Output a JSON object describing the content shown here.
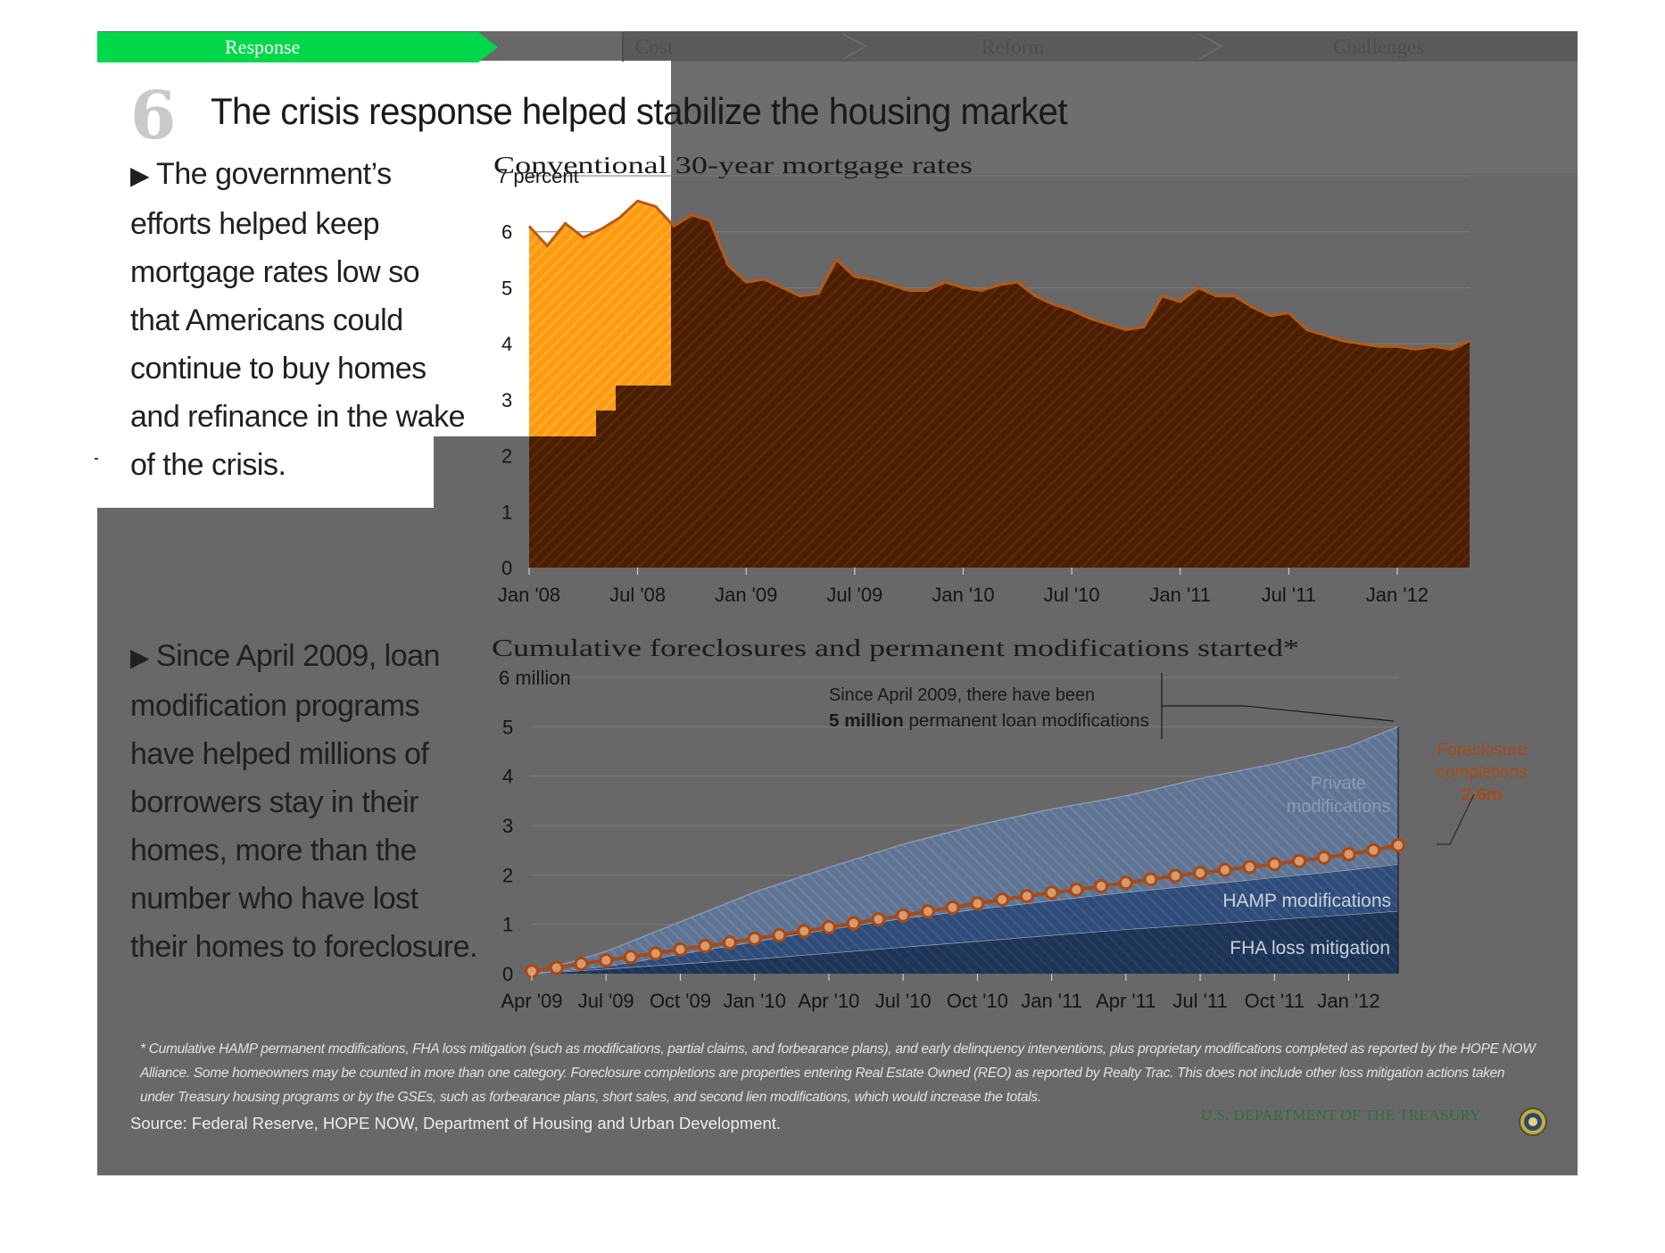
{
  "nav": {
    "active_tab": "Response",
    "tabs": [
      "Cost",
      "Reform",
      "Challenges"
    ]
  },
  "slide": {
    "number": "6",
    "title": "The crisis response helped stabilize the housing market",
    "paragraph1": "The government’s efforts helped keep mortgage rates low so that Americans could continue to buy homes and refinance in the wake of the crisis.",
    "paragraph1_lines": [
      "The government’s",
      "efforts helped keep",
      "mortgage rates low so",
      "that Americans could",
      "continue to buy homes",
      "and refinance in the wake",
      "of the crisis."
    ],
    "paragraph2": "Since April 2009, loan modification programs have helped millions of borrowers stay in their homes, more than the number who have lost their homes to foreclosure.",
    "paragraph2_lines": [
      "Since April 2009, loan",
      "modification programs",
      "have helped millions of",
      "borrowers stay in their",
      "homes, more than the",
      "number who have lost",
      "their homes to foreclosure."
    ],
    "footnote": "* Cumulative HAMP permanent modifications, FHA loss mitigation (such as modifications, partial claims, and forbearance plans), and early delinquency interventions, plus proprietary modifications completed as reported by the HOPE NOW Alliance. Some homeowners may be counted in more than one category. Foreclosure completions are properties entering Real Estate Owned (REO) as reported by Realty Trac. This does not include other loss mitigation actions taken under Treasury housing programs  or by the GSEs, such as forbearance plans, short sales, and second lien modifications, which would increase the totals.",
    "source": "Source: Federal Reserve, HOPE NOW, Department of Housing and Urban Development.",
    "department": "U.S. DEPARTMENT OF THE TREASURY"
  },
  "colors": {
    "accent_green": "#00d84a",
    "panel_gray": "#686868",
    "mortgage_fill": "#4a1e02",
    "mortgage_highlight": "#ff9a0d",
    "mortgage_line": "#b65a14",
    "foreclosure_line": "#a84a16",
    "fha_band": "#1f3857",
    "hamp_band": "#324f7c",
    "private_band": "#5f7392"
  },
  "chart_data": [
    {
      "type": "area",
      "title": "Conventional 30-year mortgage rates",
      "ylabel": "7 percent",
      "ylim": [
        0,
        7
      ],
      "yticks": [
        0,
        1,
        2,
        3,
        4,
        5,
        6,
        "7 percent"
      ],
      "xlim": [
        "2008-01",
        "2012-05"
      ],
      "xticks": [
        "Jan '08",
        "Jul '08",
        "Jan '09",
        "Jul '09",
        "Jan '10",
        "Jul '10",
        "Jan '11",
        "Jul '11",
        "Jan '12"
      ],
      "grid": true,
      "series": [
        {
          "x": [
            "2008-01",
            "2008-02",
            "2008-03",
            "2008-04",
            "2008-05",
            "2008-06",
            "2008-07",
            "2008-08",
            "2008-09",
            "2008-10",
            "2008-11",
            "2008-12",
            "2009-01",
            "2009-02",
            "2009-03",
            "2009-04",
            "2009-05",
            "2009-06",
            "2009-07",
            "2009-08",
            "2009-09",
            "2009-10",
            "2009-11",
            "2009-12",
            "2010-01",
            "2010-02",
            "2010-03",
            "2010-04",
            "2010-05",
            "2010-06",
            "2010-07",
            "2010-08",
            "2010-09",
            "2010-10",
            "2010-11",
            "2010-12",
            "2011-01",
            "2011-02",
            "2011-03",
            "2011-04",
            "2011-05",
            "2011-06",
            "2011-07",
            "2011-08",
            "2011-09",
            "2011-10",
            "2011-11",
            "2011-12",
            "2012-01",
            "2012-02",
            "2012-03",
            "2012-04",
            "2012-05"
          ],
          "values": [
            6.1,
            5.75,
            6.15,
            5.9,
            6.05,
            6.25,
            6.55,
            6.45,
            6.1,
            6.3,
            6.2,
            5.4,
            5.1,
            5.15,
            5.0,
            4.85,
            4.9,
            5.5,
            5.2,
            5.15,
            5.05,
            4.95,
            4.95,
            5.1,
            5.0,
            4.95,
            5.05,
            5.1,
            4.85,
            4.7,
            4.6,
            4.45,
            4.35,
            4.25,
            4.3,
            4.85,
            4.75,
            5.0,
            4.85,
            4.85,
            4.65,
            4.5,
            4.55,
            4.25,
            4.15,
            4.05,
            4.0,
            3.95,
            3.95,
            3.9,
            3.95,
            3.9,
            4.05
          ]
        }
      ]
    },
    {
      "type": "area",
      "title": "Cumulative foreclosures and permanent modifications started*",
      "ylabel": "6 million",
      "ylim": [
        0,
        6
      ],
      "yticks": [
        0,
        1,
        2,
        3,
        4,
        5,
        "6 million"
      ],
      "xlim": [
        "2009-04",
        "2012-03"
      ],
      "xticks": [
        "Apr '09",
        "Jul '09",
        "Oct '09",
        "Jan '10",
        "Apr '10",
        "Jul '10",
        "Oct '10",
        "Jan '11",
        "Apr '11",
        "Jul '11",
        "Oct '11",
        "Jan '12"
      ],
      "grid": true,
      "x": [
        "2009-04",
        "2009-07",
        "2009-10",
        "2010-01",
        "2010-04",
        "2010-07",
        "2010-10",
        "2011-01",
        "2011-04",
        "2011-07",
        "2011-10",
        "2012-01",
        "2012-03"
      ],
      "series": [
        {
          "name": "FHA loss mitigation",
          "values": [
            0.0,
            0.1,
            0.2,
            0.3,
            0.42,
            0.54,
            0.66,
            0.78,
            0.9,
            1.0,
            1.1,
            1.2,
            1.27
          ]
        },
        {
          "name": "HAMP modifications",
          "values": [
            0.0,
            0.05,
            0.2,
            0.35,
            0.48,
            0.58,
            0.65,
            0.7,
            0.75,
            0.8,
            0.85,
            0.9,
            0.95
          ]
        },
        {
          "name": "Private modifications",
          "values": [
            0.0,
            0.3,
            0.65,
            1.0,
            1.25,
            1.5,
            1.7,
            1.85,
            1.95,
            2.15,
            2.3,
            2.5,
            2.78
          ]
        }
      ],
      "line": {
        "name": "Foreclosure completions",
        "x": [
          "2009-04",
          "2009-05",
          "2009-06",
          "2009-07",
          "2009-08",
          "2009-09",
          "2009-10",
          "2009-11",
          "2009-12",
          "2010-01",
          "2010-02",
          "2010-03",
          "2010-04",
          "2010-05",
          "2010-06",
          "2010-07",
          "2010-08",
          "2010-09",
          "2010-10",
          "2010-11",
          "2010-12",
          "2011-01",
          "2011-02",
          "2011-03",
          "2011-04",
          "2011-05",
          "2011-06",
          "2011-07",
          "2011-08",
          "2011-09",
          "2011-10",
          "2011-11",
          "2011-12",
          "2012-01",
          "2012-02",
          "2012-03"
        ],
        "values": [
          0.05,
          0.12,
          0.2,
          0.27,
          0.34,
          0.41,
          0.49,
          0.56,
          0.63,
          0.71,
          0.78,
          0.86,
          0.94,
          1.02,
          1.1,
          1.18,
          1.26,
          1.34,
          1.42,
          1.5,
          1.57,
          1.64,
          1.7,
          1.77,
          1.84,
          1.91,
          1.98,
          2.04,
          2.1,
          2.16,
          2.22,
          2.28,
          2.35,
          2.42,
          2.5,
          2.6
        ]
      },
      "annotations": [
        {
          "text": "Since April 2009, there have been",
          "bold": "5 million",
          "rest": " permanent loan modifications"
        },
        {
          "text": "Foreclosure completions",
          "value": "2.6m"
        }
      ]
    }
  ]
}
